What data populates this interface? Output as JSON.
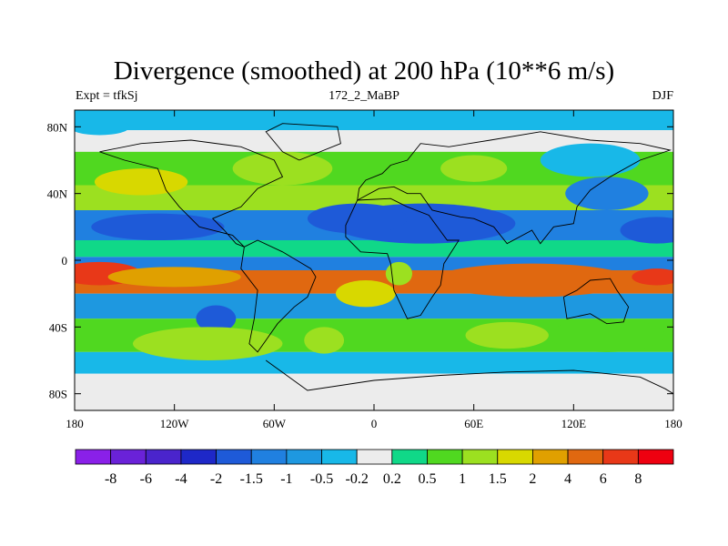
{
  "chart_data": {
    "type": "heatmap",
    "title": "Divergence (smoothed) at 200 hPa (10**6 m/s)",
    "left_label": "Expt = tfkSj",
    "center_label": "172_2_MaBP",
    "right_label": "DJF",
    "x_ticks": [
      "180",
      "120W",
      "60W",
      "0",
      "60E",
      "120E",
      "180"
    ],
    "x_tick_values": [
      -180,
      -120,
      -60,
      0,
      60,
      120,
      180
    ],
    "y_ticks": [
      "80N",
      "40N",
      "0",
      "40S",
      "80S"
    ],
    "y_tick_values": [
      80,
      40,
      0,
      -40,
      -80
    ],
    "xlim": [
      -180,
      180
    ],
    "ylim": [
      -90,
      90
    ],
    "colorbar": {
      "labels": [
        "-8",
        "-6",
        "-4",
        "-2",
        "-1.5",
        "-1",
        "-0.5",
        "-0.2",
        "0.2",
        "0.5",
        "1",
        "1.5",
        "2",
        "4",
        "6",
        "8"
      ],
      "colors": [
        "#8a20e8",
        "#6a22d8",
        "#4a24cc",
        "#1e28c8",
        "#1e5ad8",
        "#2080e0",
        "#1e98e0",
        "#18b8e8",
        "#ececec",
        "#10d888",
        "#50d820",
        "#9ce020",
        "#d8d800",
        "#e0a000",
        "#e06810",
        "#e83818",
        "#ee0010"
      ]
    },
    "bands": [
      {
        "lat_from": 90,
        "lat_to": 78,
        "value": -0.5
      },
      {
        "lat_from": 78,
        "lat_to": 65,
        "value": 0
      },
      {
        "lat_from": 65,
        "lat_to": 45,
        "value": 0.8
      },
      {
        "lat_from": 45,
        "lat_to": 30,
        "value": 1.2
      },
      {
        "lat_from": 30,
        "lat_to": 12,
        "value": -1.5
      },
      {
        "lat_from": 12,
        "lat_to": 2,
        "value": 0.3
      },
      {
        "lat_from": 2,
        "lat_to": -6,
        "value": -1.2
      },
      {
        "lat_from": -6,
        "lat_to": -20,
        "value": 4
      },
      {
        "lat_from": -20,
        "lat_to": -35,
        "value": -0.8
      },
      {
        "lat_from": -35,
        "lat_to": -55,
        "value": 0.7
      },
      {
        "lat_from": -55,
        "lat_to": -68,
        "value": -0.4
      },
      {
        "lat_from": -68,
        "lat_to": -90,
        "value": 0
      }
    ],
    "blobs": [
      {
        "lon": -140,
        "lat": 47,
        "rx": 28,
        "ry": 8,
        "value": 1.5
      },
      {
        "lon": -55,
        "lat": 55,
        "rx": 30,
        "ry": 10,
        "value": 1.2
      },
      {
        "lon": 30,
        "lat": 22,
        "rx": 55,
        "ry": 12,
        "value": -2
      },
      {
        "lon": -130,
        "lat": 20,
        "rx": 40,
        "ry": 8,
        "value": -2
      },
      {
        "lon": -10,
        "lat": 25,
        "rx": 30,
        "ry": 9,
        "value": -2
      },
      {
        "lon": 140,
        "lat": 40,
        "rx": 25,
        "ry": 10,
        "value": -1.5
      },
      {
        "lon": 170,
        "lat": 18,
        "rx": 22,
        "ry": 8,
        "value": -2
      },
      {
        "lon": -165,
        "lat": -8,
        "rx": 25,
        "ry": 7,
        "value": 6
      },
      {
        "lon": -120,
        "lat": -10,
        "rx": 40,
        "ry": 6,
        "value": 2
      },
      {
        "lon": 95,
        "lat": -12,
        "rx": 60,
        "ry": 10,
        "value": 4
      },
      {
        "lon": 170,
        "lat": -10,
        "rx": 15,
        "ry": 5,
        "value": 6
      },
      {
        "lon": -5,
        "lat": -20,
        "rx": 18,
        "ry": 8,
        "value": 1.5
      },
      {
        "lon": 15,
        "lat": -8,
        "rx": 8,
        "ry": 7,
        "value": 1.2
      },
      {
        "lon": -95,
        "lat": -35,
        "rx": 12,
        "ry": 8,
        "value": -2
      },
      {
        "lon": -100,
        "lat": -50,
        "rx": 45,
        "ry": 10,
        "value": 1
      },
      {
        "lon": -30,
        "lat": -48,
        "rx": 12,
        "ry": 8,
        "value": 1
      },
      {
        "lon": 80,
        "lat": -45,
        "rx": 25,
        "ry": 8,
        "value": 1.2
      },
      {
        "lon": 140,
        "lat": -45,
        "rx": 35,
        "ry": 10,
        "value": 0.8
      },
      {
        "lon": -165,
        "lat": 80,
        "rx": 18,
        "ry": 5,
        "value": -0.5
      },
      {
        "lon": 60,
        "lat": 55,
        "rx": 20,
        "ry": 8,
        "value": 1
      },
      {
        "lon": 130,
        "lat": 60,
        "rx": 30,
        "ry": 10,
        "value": -0.5
      }
    ]
  }
}
